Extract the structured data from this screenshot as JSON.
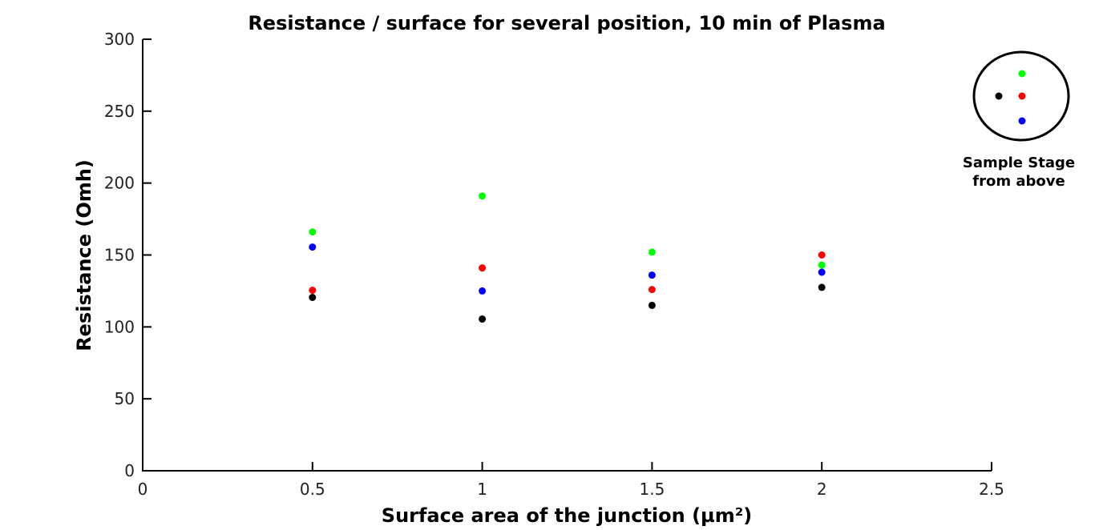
{
  "chart_data": {
    "type": "scatter",
    "title": "Resistance / surface for several position, 10 min of Plasma",
    "xlabel": "Surface area of the junction (µm²)",
    "ylabel": "Resistance (Omh)",
    "xlim": [
      0,
      2.5
    ],
    "ylim": [
      0,
      300
    ],
    "xticks": [
      0,
      0.5,
      1,
      1.5,
      2,
      2.5
    ],
    "xtick_labels": [
      "0",
      "0.5",
      "1",
      "1.5",
      "2",
      "2.5"
    ],
    "yticks": [
      0,
      50,
      100,
      150,
      200,
      250,
      300
    ],
    "ytick_labels": [
      "0",
      "50",
      "100",
      "150",
      "200",
      "250",
      "300"
    ],
    "grid": false,
    "series": [
      {
        "color": "#00ff00",
        "x": [
          0.5,
          1,
          1.5,
          2
        ],
        "y": [
          166,
          191,
          152,
          143
        ]
      },
      {
        "color": "#ff0000",
        "x": [
          0.5,
          1,
          1.5,
          2
        ],
        "y": [
          125.5,
          141,
          126,
          150
        ]
      },
      {
        "color": "#0000ff",
        "x": [
          0.5,
          1,
          1.5,
          2
        ],
        "y": [
          155.5,
          125,
          136,
          138
        ]
      },
      {
        "color": "#000000",
        "x": [
          0.5,
          1,
          1.5,
          2
        ],
        "y": [
          120.5,
          105.5,
          115,
          127.5
        ]
      }
    ]
  },
  "inset": {
    "label_line1": "Sample Stage",
    "label_line2": "from above",
    "dots": [
      {
        "name": "green-position-dot",
        "color": "#00ff00"
      },
      {
        "name": "black-position-dot",
        "color": "#000000"
      },
      {
        "name": "red-position-dot",
        "color": "#ff0000"
      },
      {
        "name": "blue-position-dot",
        "color": "#0000ff"
      }
    ]
  }
}
